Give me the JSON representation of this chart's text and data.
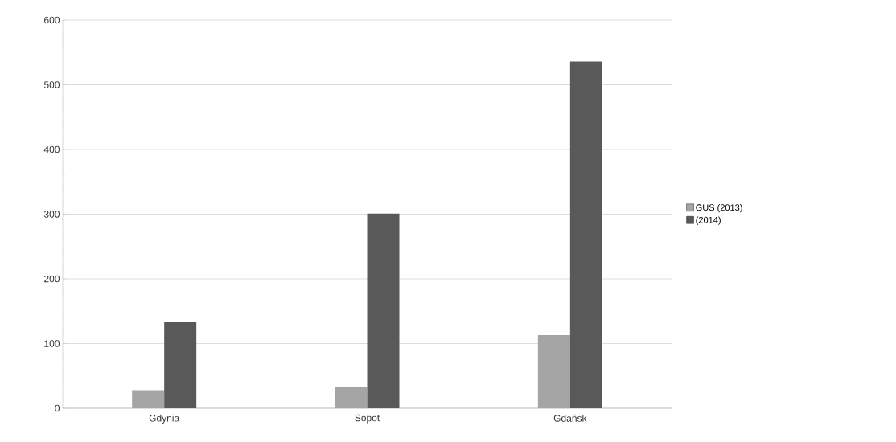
{
  "chart_data": {
    "type": "bar",
    "categories": [
      "Gdynia",
      "Sopot",
      "Gdańsk"
    ],
    "series": [
      {
        "name": "GUS (2013)",
        "color": "#a5a5a5",
        "values": [
          28,
          33,
          113
        ]
      },
      {
        "name": "(2014)",
        "color": "#595959",
        "values": [
          133,
          301,
          536
        ]
      }
    ],
    "ylim": [
      0,
      600
    ],
    "yticks": [
      0,
      100,
      200,
      300,
      400,
      500,
      600
    ],
    "grid": "y",
    "legend": "right"
  }
}
